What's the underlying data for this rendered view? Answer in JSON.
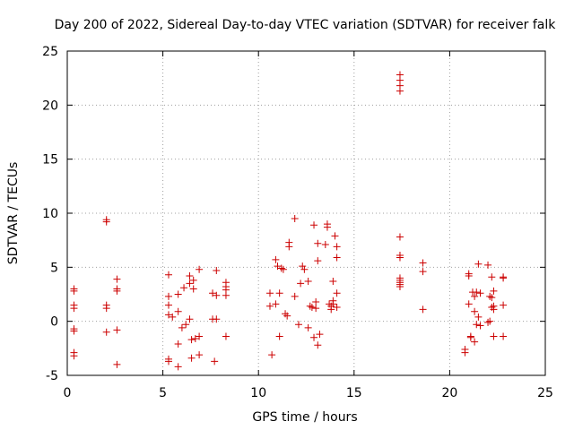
{
  "chart_data": {
    "type": "scatter",
    "title": "Day 200 of 2022, Sidereal Day-to-day VTEC variation (SDTVAR) for receiver falk",
    "xlabel": "GPS time / hours",
    "ylabel": "SDTVAR / TECUs",
    "xlim": [
      0,
      25
    ],
    "ylim": [
      -5,
      25
    ],
    "xticks": [
      "0",
      "5",
      "10",
      "15",
      "20",
      "25"
    ],
    "yticks": [
      "-5",
      "0",
      "5",
      "10",
      "15",
      "20",
      "25"
    ],
    "grid": true,
    "marker": "+",
    "color": "#cc0000",
    "x": [
      0.35,
      0.35,
      0.35,
      0.35,
      0.35,
      0.35,
      0.35,
      0.35,
      2.05,
      2.05,
      2.05,
      2.05,
      2.05,
      2.6,
      2.6,
      2.6,
      2.6,
      2.6,
      5.3,
      5.3,
      5.3,
      5.3,
      5.3,
      5.3,
      5.5,
      5.8,
      5.8,
      5.8,
      5.8,
      6.0,
      6.1,
      6.2,
      6.4,
      6.4,
      6.4,
      6.5,
      6.5,
      6.6,
      6.6,
      6.7,
      6.9,
      6.9,
      6.9,
      7.6,
      7.6,
      7.7,
      7.8,
      7.8,
      7.8,
      8.3,
      8.3,
      8.3,
      8.3,
      8.3,
      10.6,
      10.6,
      10.7,
      10.9,
      10.9,
      11.0,
      11.1,
      11.1,
      11.2,
      11.3,
      11.4,
      11.5,
      11.6,
      11.6,
      11.9,
      11.9,
      12.1,
      12.2,
      12.3,
      12.4,
      12.6,
      12.6,
      12.7,
      12.8,
      12.9,
      12.9,
      13.0,
      13.0,
      13.1,
      13.1,
      13.1,
      13.2,
      13.5,
      13.6,
      13.6,
      13.7,
      13.8,
      13.8,
      13.9,
      13.9,
      13.9,
      14.0,
      14.1,
      14.1,
      14.1,
      14.1,
      17.4,
      17.4,
      17.4,
      17.4,
      17.4,
      17.4,
      17.4,
      17.4,
      17.4,
      17.4,
      17.4,
      17.4,
      18.6,
      18.6,
      18.6,
      20.8,
      20.8,
      21.0,
      21.0,
      21.0,
      21.1,
      21.1,
      21.2,
      21.3,
      21.3,
      21.3,
      21.4,
      21.4,
      21.5,
      21.5,
      21.6,
      21.6,
      22.0,
      22.0,
      22.1,
      22.1,
      22.2,
      22.2,
      22.2,
      22.3,
      22.3,
      22.3,
      22.3,
      22.8,
      22.8,
      22.8,
      22.8
    ],
    "y": [
      3.0,
      2.8,
      1.5,
      1.2,
      -0.7,
      -0.9,
      -2.9,
      -3.2,
      9.4,
      9.2,
      1.5,
      1.2,
      -1.0,
      3.9,
      3.0,
      2.8,
      -0.8,
      -4.0,
      4.3,
      2.3,
      1.5,
      0.6,
      -3.5,
      -3.7,
      0.4,
      2.5,
      0.9,
      -2.1,
      -4.2,
      -0.6,
      3.1,
      -0.3,
      4.2,
      3.5,
      0.2,
      -1.7,
      -3.4,
      3.8,
      3.0,
      -1.6,
      4.8,
      -1.4,
      -3.1,
      2.6,
      0.2,
      -3.7,
      4.7,
      2.4,
      0.2,
      3.6,
      3.2,
      2.9,
      2.4,
      -1.4,
      2.6,
      1.4,
      -3.1,
      5.7,
      1.6,
      5.1,
      2.6,
      -1.4,
      4.9,
      4.8,
      0.7,
      0.5,
      7.3,
      6.9,
      9.5,
      2.3,
      -0.3,
      3.5,
      5.1,
      4.8,
      -0.6,
      3.7,
      1.4,
      1.3,
      8.9,
      -1.5,
      1.8,
      1.2,
      7.2,
      5.6,
      -2.2,
      -1.2,
      7.1,
      9.0,
      8.7,
      1.6,
      1.4,
      1.1,
      3.7,
      1.9,
      1.6,
      7.9,
      6.9,
      5.9,
      2.6,
      1.3,
      22.8,
      22.3,
      21.8,
      21.3,
      7.8,
      6.1,
      5.9,
      4.0,
      3.8,
      3.6,
      3.4,
      3.2,
      5.4,
      4.6,
      1.1,
      -2.6,
      -2.9,
      4.4,
      4.2,
      1.6,
      -1.4,
      -1.5,
      2.7,
      2.3,
      0.9,
      -1.9,
      2.7,
      -0.3,
      5.3,
      0.4,
      2.6,
      -0.4,
      5.2,
      -0.1,
      2.3,
      0.0,
      4.1,
      2.2,
      1.3,
      2.8,
      1.4,
      1.1,
      -1.4,
      4.1,
      4.0,
      1.5,
      -1.4
    ]
  }
}
